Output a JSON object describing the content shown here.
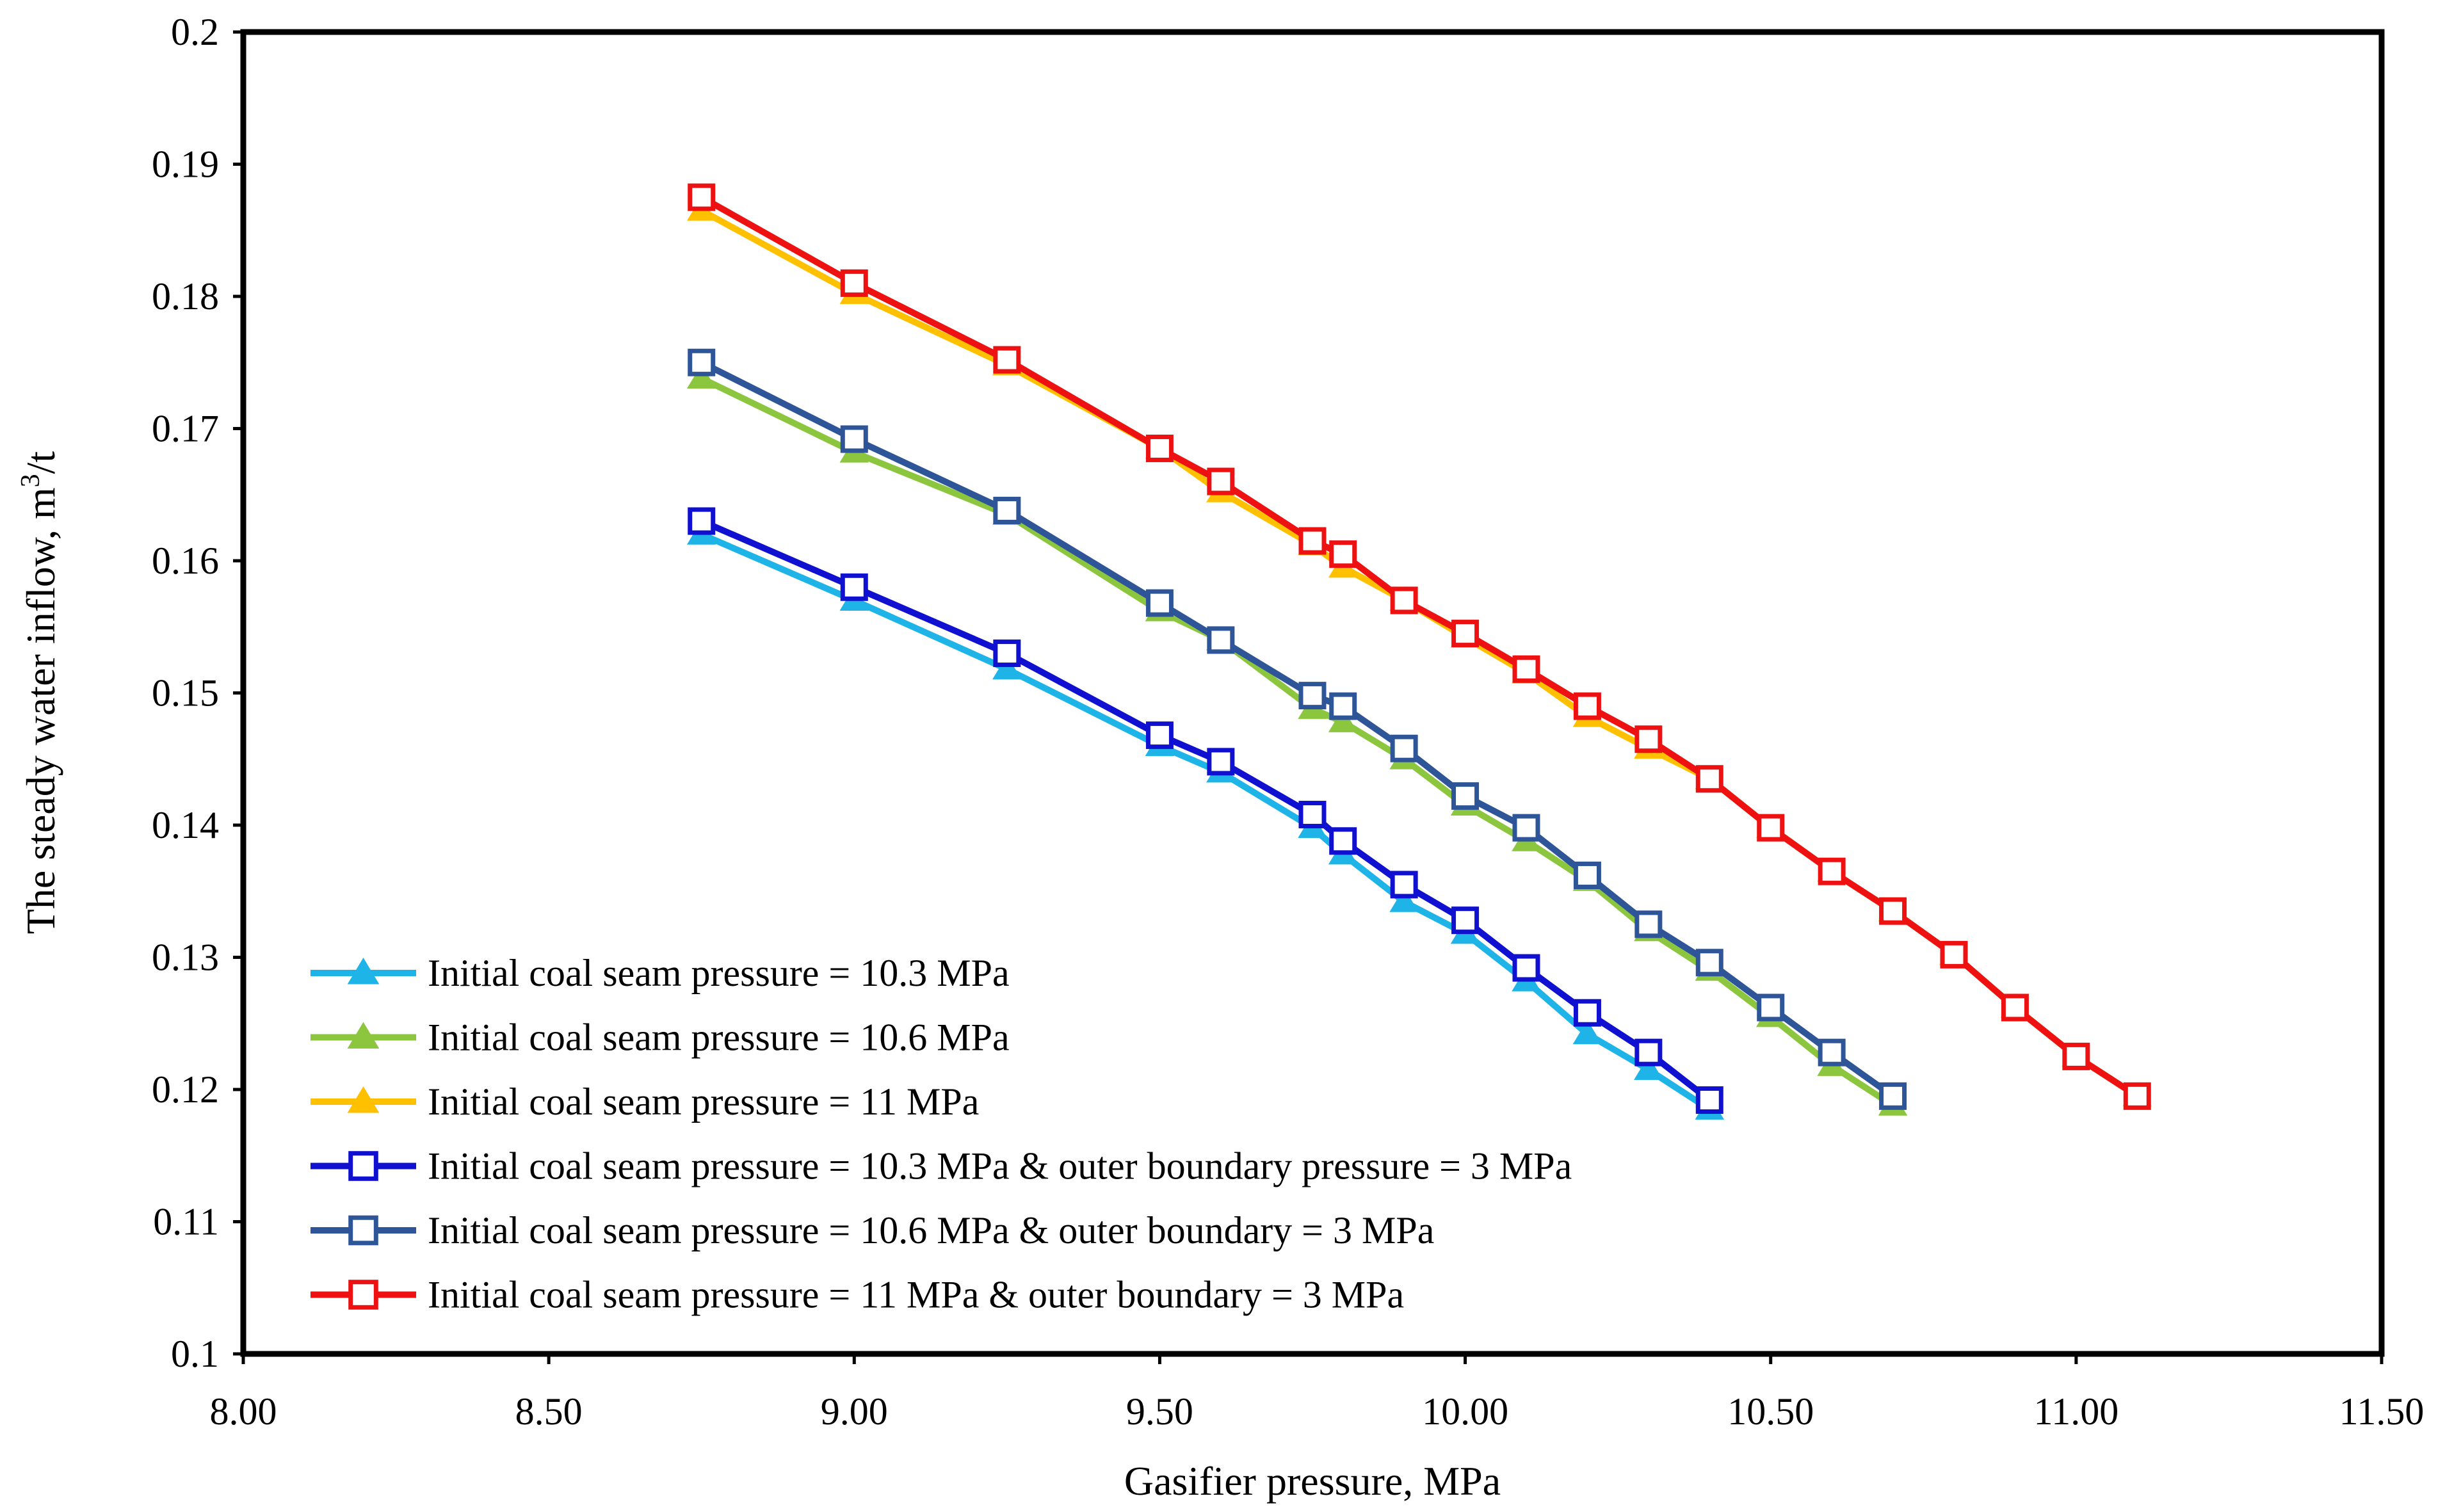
{
  "chart_data": {
    "type": "line",
    "title": "",
    "xlabel": "Gasifier pressure, MPa",
    "ylabel": {
      "text": "The steady water inflow, m",
      "superscript": "3",
      "suffix": "/t"
    },
    "xlim": [
      8.0,
      11.5
    ],
    "ylim": [
      0.1,
      0.2
    ],
    "x_ticks": [
      "8.00",
      "8.50",
      "9.00",
      "9.50",
      "10.00",
      "10.50",
      "11.00",
      "11.50"
    ],
    "y_ticks": [
      "0.1",
      "0.11",
      "0.12",
      "0.13",
      "0.14",
      "0.15",
      "0.16",
      "0.17",
      "0.18",
      "0.19",
      "0.2"
    ],
    "grid": false,
    "legend_position": "bottom-left",
    "series": [
      {
        "name": "Initial coal seam pressure = 10.3 MPa",
        "color": "#1EB4E8",
        "marker": "triangle",
        "x": [
          8.75,
          9.0,
          9.25,
          9.5,
          9.6,
          9.75,
          9.8,
          9.9,
          10.0,
          10.1,
          10.2,
          10.3,
          10.4
        ],
        "y": [
          0.162,
          0.157,
          0.1518,
          0.146,
          0.144,
          0.1398,
          0.1378,
          0.1342,
          0.1318,
          0.1282,
          0.1242,
          0.1215,
          0.1185
        ]
      },
      {
        "name": "Initial coal seam pressure = 10.6 MPa",
        "color": "#8CC63F",
        "marker": "triangle",
        "x": [
          8.75,
          9.0,
          9.25,
          9.5,
          9.6,
          9.75,
          9.8,
          9.9,
          10.0,
          10.1,
          10.2,
          10.3,
          10.4,
          10.5,
          10.6,
          10.7
        ],
        "y": [
          0.1738,
          0.1682,
          0.1635,
          0.1562,
          0.154,
          0.1488,
          0.1478,
          0.145,
          0.1415,
          0.1388,
          0.1358,
          0.132,
          0.129,
          0.1255,
          0.1218,
          0.1188
        ]
      },
      {
        "name": "Initial coal seam pressure = 11 MPa",
        "color": "#FFC000",
        "marker": "triangle",
        "x": [
          8.75,
          9.0,
          9.25,
          9.5,
          9.6,
          9.75,
          9.8,
          9.9,
          10.0,
          10.1,
          10.2,
          10.3,
          10.4,
          10.5,
          10.6,
          10.7,
          10.8,
          10.9,
          11.0,
          11.1
        ],
        "y": [
          0.1865,
          0.1802,
          0.1748,
          0.1685,
          0.1652,
          0.1612,
          0.1595,
          0.157,
          0.1542,
          0.1515,
          0.1482,
          0.1458,
          0.1435,
          0.1398,
          0.1365,
          0.1335,
          0.1302,
          0.1262,
          0.1225,
          0.1195
        ]
      },
      {
        "name": "Initial coal seam pressure = 10.3 MPa & outer boundary pressure = 3 MPa",
        "color": "#1010D0",
        "marker": "square",
        "x": [
          8.75,
          9.0,
          9.25,
          9.5,
          9.6,
          9.75,
          9.8,
          9.9,
          10.0,
          10.1,
          10.2,
          10.3,
          10.4
        ],
        "y": [
          0.163,
          0.158,
          0.153,
          0.1468,
          0.1448,
          0.1408,
          0.1388,
          0.1355,
          0.1328,
          0.1292,
          0.1258,
          0.1228,
          0.1192
        ]
      },
      {
        "name": "Initial coal seam pressure = 10.6 MPa & outer boundary = 3 MPa",
        "color": "#2E5597",
        "marker": "square",
        "x": [
          8.75,
          9.0,
          9.25,
          9.5,
          9.6,
          9.75,
          9.8,
          9.9,
          10.0,
          10.1,
          10.2,
          10.3,
          10.4,
          10.5,
          10.6,
          10.7
        ],
        "y": [
          0.175,
          0.1692,
          0.1638,
          0.1568,
          0.154,
          0.1498,
          0.149,
          0.1458,
          0.1422,
          0.1398,
          0.1362,
          0.1325,
          0.1296,
          0.1262,
          0.1228,
          0.1195
        ]
      },
      {
        "name": "Initial coal seam pressure = 11 MPa & outer boundary = 3 MPa",
        "color": "#EE1111",
        "marker": "square",
        "x": [
          8.75,
          9.0,
          9.25,
          9.5,
          9.6,
          9.75,
          9.8,
          9.9,
          10.0,
          10.1,
          10.2,
          10.3,
          10.4,
          10.5,
          10.6,
          10.7,
          10.8,
          10.9,
          11.0,
          11.1
        ],
        "y": [
          0.1875,
          0.181,
          0.1752,
          0.1685,
          0.166,
          0.1615,
          0.1605,
          0.157,
          0.1545,
          0.1518,
          0.149,
          0.1465,
          0.1435,
          0.1398,
          0.1365,
          0.1335,
          0.1302,
          0.1262,
          0.1225,
          0.1195
        ]
      }
    ]
  }
}
